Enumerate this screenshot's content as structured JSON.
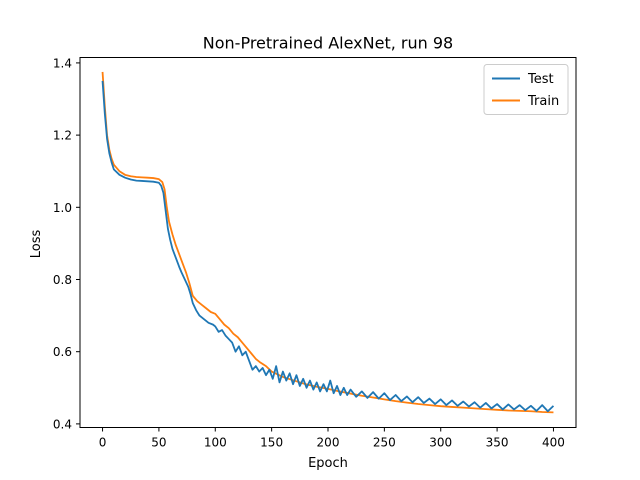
{
  "chart_data": {
    "type": "line",
    "title": "Non-Pretrained AlexNet, run 98",
    "xlabel": "Epoch",
    "ylabel": "Loss",
    "xlim": [
      -20,
      420
    ],
    "ylim": [
      0.39,
      1.415
    ],
    "xticks": [
      0,
      50,
      100,
      150,
      200,
      250,
      300,
      350,
      400
    ],
    "yticks": [
      0.4,
      0.6,
      0.8,
      1.0,
      1.2,
      1.4
    ],
    "xtick_labels": [
      "0",
      "50",
      "100",
      "150",
      "200",
      "250",
      "300",
      "350",
      "400"
    ],
    "ytick_labels": [
      "0.4",
      "0.6",
      "0.8",
      "1.0",
      "1.2",
      "1.4"
    ],
    "grid": false,
    "legend": "top-right",
    "series": [
      {
        "name": "Test",
        "color": "#1f77b4",
        "points": [
          [
            0,
            1.35
          ],
          [
            2,
            1.26
          ],
          [
            4,
            1.19
          ],
          [
            6,
            1.15
          ],
          [
            8,
            1.125
          ],
          [
            10,
            1.105
          ],
          [
            15,
            1.09
          ],
          [
            20,
            1.082
          ],
          [
            25,
            1.077
          ],
          [
            30,
            1.074
          ],
          [
            35,
            1.073
          ],
          [
            40,
            1.072
          ],
          [
            45,
            1.071
          ],
          [
            50,
            1.068
          ],
          [
            52,
            1.06
          ],
          [
            54,
            1.04
          ],
          [
            56,
            0.99
          ],
          [
            58,
            0.94
          ],
          [
            60,
            0.91
          ],
          [
            62,
            0.885
          ],
          [
            65,
            0.86
          ],
          [
            68,
            0.835
          ],
          [
            70,
            0.82
          ],
          [
            73,
            0.8
          ],
          [
            76,
            0.78
          ],
          [
            78,
            0.76
          ],
          [
            80,
            0.735
          ],
          [
            83,
            0.715
          ],
          [
            86,
            0.7
          ],
          [
            90,
            0.69
          ],
          [
            94,
            0.68
          ],
          [
            98,
            0.675
          ],
          [
            100,
            0.67
          ],
          [
            103,
            0.655
          ],
          [
            106,
            0.66
          ],
          [
            109,
            0.645
          ],
          [
            112,
            0.635
          ],
          [
            115,
            0.625
          ],
          [
            118,
            0.6
          ],
          [
            121,
            0.615
          ],
          [
            124,
            0.59
          ],
          [
            127,
            0.6
          ],
          [
            130,
            0.575
          ],
          [
            133,
            0.55
          ],
          [
            136,
            0.56
          ],
          [
            139,
            0.545
          ],
          [
            142,
            0.555
          ],
          [
            145,
            0.535
          ],
          [
            148,
            0.55
          ],
          [
            151,
            0.525
          ],
          [
            154,
            0.56
          ],
          [
            157,
            0.515
          ],
          [
            160,
            0.545
          ],
          [
            163,
            0.52
          ],
          [
            166,
            0.54
          ],
          [
            169,
            0.51
          ],
          [
            172,
            0.535
          ],
          [
            175,
            0.505
          ],
          [
            178,
            0.525
          ],
          [
            181,
            0.5
          ],
          [
            184,
            0.52
          ],
          [
            187,
            0.495
          ],
          [
            190,
            0.515
          ],
          [
            193,
            0.49
          ],
          [
            196,
            0.51
          ],
          [
            199,
            0.49
          ],
          [
            202,
            0.52
          ],
          [
            205,
            0.485
          ],
          [
            208,
            0.505
          ],
          [
            211,
            0.48
          ],
          [
            214,
            0.5
          ],
          [
            217,
            0.48
          ],
          [
            220,
            0.495
          ],
          [
            225,
            0.475
          ],
          [
            230,
            0.49
          ],
          [
            235,
            0.472
          ],
          [
            240,
            0.488
          ],
          [
            245,
            0.47
          ],
          [
            250,
            0.485
          ],
          [
            255,
            0.466
          ],
          [
            260,
            0.48
          ],
          [
            265,
            0.463
          ],
          [
            270,
            0.476
          ],
          [
            275,
            0.46
          ],
          [
            280,
            0.474
          ],
          [
            285,
            0.458
          ],
          [
            290,
            0.47
          ],
          [
            295,
            0.455
          ],
          [
            300,
            0.468
          ],
          [
            305,
            0.452
          ],
          [
            310,
            0.465
          ],
          [
            315,
            0.45
          ],
          [
            320,
            0.462
          ],
          [
            325,
            0.448
          ],
          [
            330,
            0.46
          ],
          [
            335,
            0.445
          ],
          [
            340,
            0.458
          ],
          [
            345,
            0.443
          ],
          [
            350,
            0.455
          ],
          [
            355,
            0.44
          ],
          [
            360,
            0.454
          ],
          [
            365,
            0.44
          ],
          [
            370,
            0.452
          ],
          [
            375,
            0.438
          ],
          [
            380,
            0.45
          ],
          [
            385,
            0.436
          ],
          [
            390,
            0.452
          ],
          [
            395,
            0.435
          ],
          [
            400,
            0.45
          ]
        ]
      },
      {
        "name": "Train",
        "color": "#ff7f0e",
        "points": [
          [
            0,
            1.375
          ],
          [
            2,
            1.28
          ],
          [
            4,
            1.2
          ],
          [
            6,
            1.16
          ],
          [
            8,
            1.135
          ],
          [
            10,
            1.118
          ],
          [
            15,
            1.1
          ],
          [
            20,
            1.09
          ],
          [
            25,
            1.086
          ],
          [
            30,
            1.084
          ],
          [
            35,
            1.083
          ],
          [
            40,
            1.082
          ],
          [
            45,
            1.081
          ],
          [
            50,
            1.078
          ],
          [
            53,
            1.07
          ],
          [
            55,
            1.05
          ],
          [
            57,
            1.0
          ],
          [
            59,
            0.96
          ],
          [
            62,
            0.925
          ],
          [
            65,
            0.895
          ],
          [
            68,
            0.87
          ],
          [
            71,
            0.845
          ],
          [
            74,
            0.82
          ],
          [
            77,
            0.79
          ],
          [
            80,
            0.755
          ],
          [
            84,
            0.74
          ],
          [
            88,
            0.73
          ],
          [
            92,
            0.72
          ],
          [
            96,
            0.71
          ],
          [
            100,
            0.705
          ],
          [
            104,
            0.69
          ],
          [
            108,
            0.675
          ],
          [
            112,
            0.665
          ],
          [
            116,
            0.65
          ],
          [
            120,
            0.64
          ],
          [
            124,
            0.625
          ],
          [
            128,
            0.61
          ],
          [
            132,
            0.595
          ],
          [
            136,
            0.58
          ],
          [
            140,
            0.57
          ],
          [
            145,
            0.56
          ],
          [
            150,
            0.545
          ],
          [
            160,
            0.53
          ],
          [
            170,
            0.52
          ],
          [
            180,
            0.51
          ],
          [
            190,
            0.503
          ],
          [
            200,
            0.497
          ],
          [
            210,
            0.49
          ],
          [
            220,
            0.484
          ],
          [
            230,
            0.478
          ],
          [
            240,
            0.473
          ],
          [
            250,
            0.468
          ],
          [
            260,
            0.463
          ],
          [
            270,
            0.459
          ],
          [
            280,
            0.455
          ],
          [
            290,
            0.452
          ],
          [
            300,
            0.449
          ],
          [
            310,
            0.447
          ],
          [
            320,
            0.445
          ],
          [
            330,
            0.443
          ],
          [
            340,
            0.441
          ],
          [
            350,
            0.439
          ],
          [
            360,
            0.437
          ],
          [
            370,
            0.436
          ],
          [
            380,
            0.435
          ],
          [
            390,
            0.433
          ],
          [
            400,
            0.432
          ]
        ]
      }
    ]
  }
}
